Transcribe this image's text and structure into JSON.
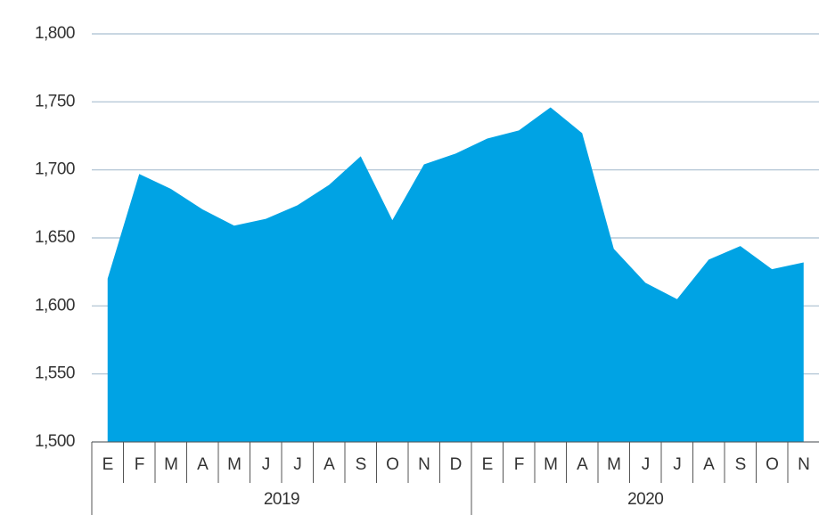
{
  "chart_data": {
    "type": "area",
    "categories": [
      "E",
      "F",
      "M",
      "A",
      "M",
      "J",
      "J",
      "A",
      "S",
      "O",
      "N",
      "D",
      "E",
      "F",
      "M",
      "A",
      "M",
      "J",
      "J",
      "A",
      "S",
      "O",
      "N"
    ],
    "year_groups": [
      {
        "label": "2019",
        "span": 12
      },
      {
        "label": "2020",
        "span": 11
      }
    ],
    "values": [
      1620,
      1697,
      1686,
      1671,
      1659,
      1664,
      1674,
      1689,
      1710,
      1663,
      1704,
      1712,
      1723,
      1729,
      1746,
      1727,
      1642,
      1617,
      1605,
      1634,
      1644,
      1627,
      1632
    ],
    "color": "#00a3e4",
    "ylim": [
      1500,
      1800
    ],
    "yticks": [
      {
        "value": 1500,
        "label": "1,500"
      },
      {
        "value": 1550,
        "label": "1,550"
      },
      {
        "value": 1600,
        "label": "1,600"
      },
      {
        "value": 1650,
        "label": "1,650"
      },
      {
        "value": 1700,
        "label": "1,700"
      },
      {
        "value": 1750,
        "label": "1,750"
      },
      {
        "value": 1800,
        "label": "1,800"
      }
    ],
    "grid": true
  }
}
